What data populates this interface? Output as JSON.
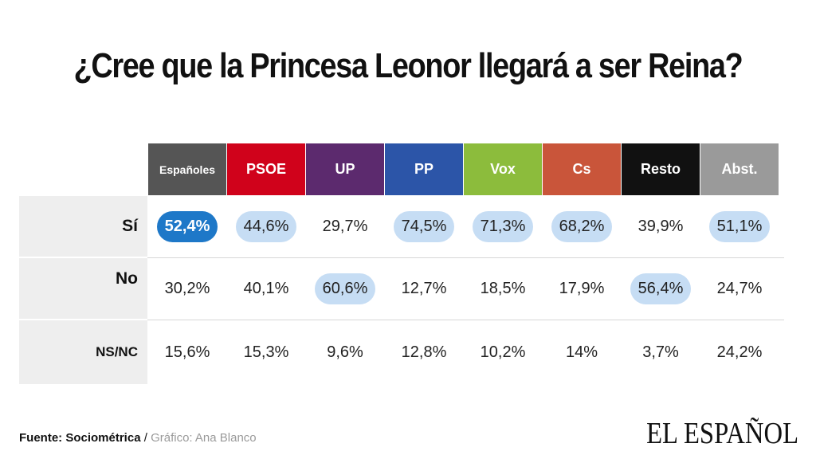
{
  "title": "¿Cree que la Princesa Leonor llegará a ser Reina?",
  "colors": {
    "Españoles": "#555555",
    "PSOE": "#d0021b",
    "UP": "#5c2a6e",
    "PP": "#2c55a8",
    "Vox": "#8cbc3c",
    "Cs": "#c9553a",
    "Resto": "#111111",
    "Abst.": "#9a9a9a",
    "highlight_light": "#c6ddf4",
    "highlight_strong": "#1e78c8"
  },
  "chart_data": {
    "type": "table",
    "title": "¿Cree que la Princesa Leonor llegará a ser Reina?",
    "columns": [
      "Españoles",
      "PSOE",
      "UP",
      "PP",
      "Vox",
      "Cs",
      "Resto",
      "Abst."
    ],
    "rows": [
      {
        "label": "Sí",
        "values": [
          "52,4%",
          "44,6%",
          "29,7%",
          "74,5%",
          "71,3%",
          "68,2%",
          "39,9%",
          "51,1%"
        ],
        "highlight": [
          "strong",
          "light",
          "",
          "light",
          "light",
          "light",
          "",
          "light"
        ]
      },
      {
        "label": "No",
        "values": [
          "30,2%",
          "40,1%",
          "60,6%",
          "12,7%",
          "18,5%",
          "17,9%",
          "56,4%",
          "24,7%"
        ],
        "highlight": [
          "",
          "",
          "light",
          "",
          "",
          "",
          "light",
          ""
        ]
      },
      {
        "label": "NS/NC",
        "values": [
          "15,6%",
          "15,3%",
          "9,6%",
          "12,8%",
          "10,2%",
          "14%",
          "3,7%",
          "24,2%"
        ],
        "highlight": [
          "",
          "",
          "",
          "",
          "",
          "",
          "",
          ""
        ]
      }
    ]
  },
  "footer": {
    "source_label": "Fuente: Sociométrica",
    "separator": " / ",
    "credit": "Gráfico: Ana Blanco"
  },
  "logo": "EL ESPAÑOL"
}
